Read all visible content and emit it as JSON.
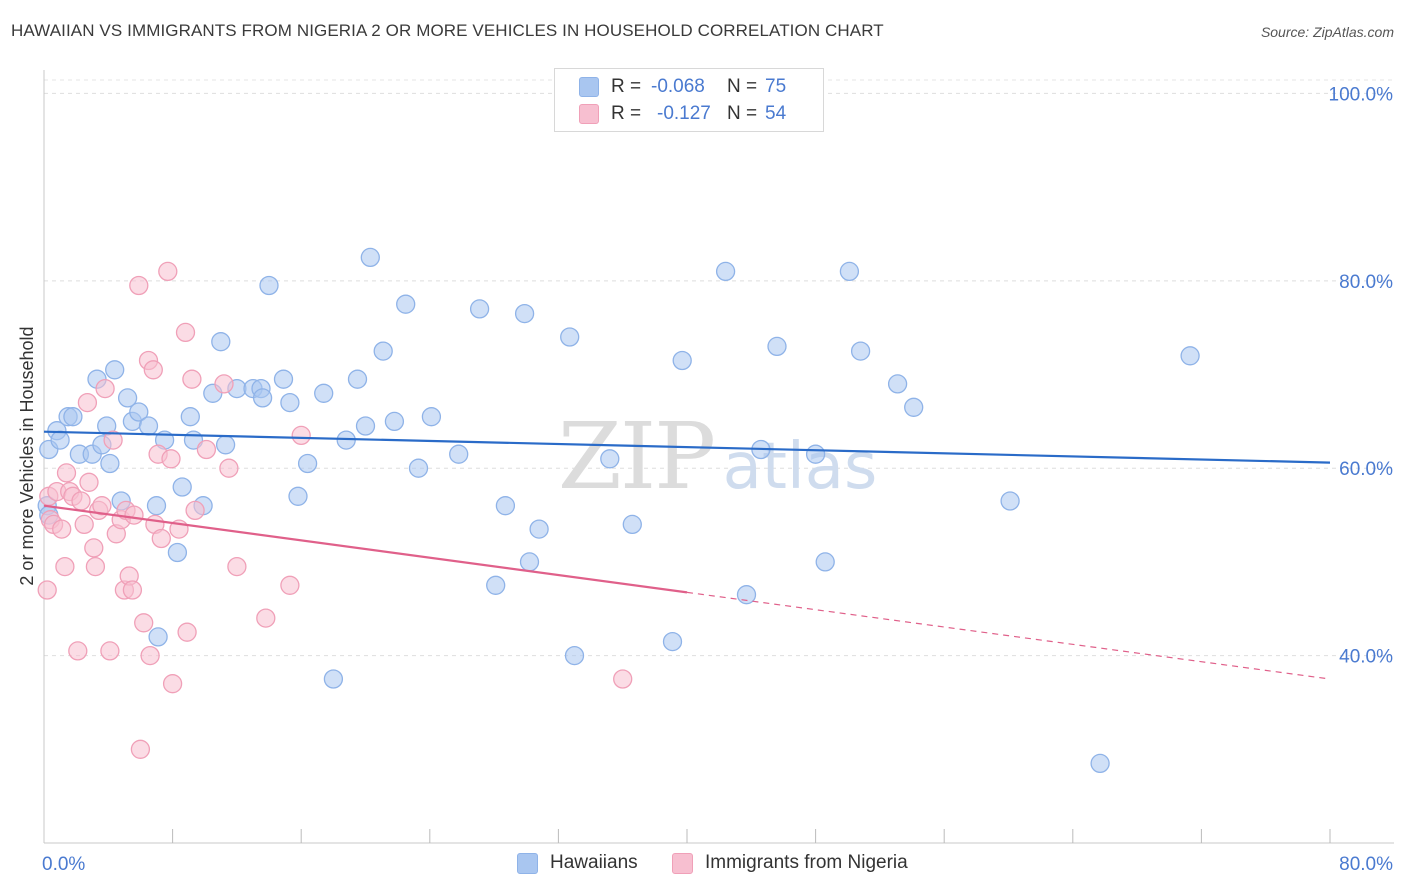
{
  "title": "HAWAIIAN VS IMMIGRANTS FROM NIGERIA 2 OR MORE VEHICLES IN HOUSEHOLD CORRELATION CHART",
  "source": "Source: ZipAtlas.com",
  "watermark": {
    "zip": "ZIP",
    "atlas": "atlas"
  },
  "legend": {
    "rows": [
      {
        "r_label": "R =",
        "r_value": "-0.068",
        "n_label": "N =",
        "n_value": "75"
      },
      {
        "r_label": "R =",
        "r_value": "-0.127",
        "n_label": "N =",
        "n_value": "54"
      }
    ]
  },
  "chart_data": {
    "type": "scatter",
    "title": "HAWAIIAN VS IMMIGRANTS FROM NIGERIA 2 OR MORE VEHICLES IN HOUSEHOLD CORRELATION CHART",
    "xlabel": "",
    "ylabel": "2 or more Vehicles in Household",
    "xlim": [
      0,
      80
    ],
    "ylim": [
      20,
      102.5
    ],
    "x_tick_labels": [
      {
        "value": 0,
        "label": "0.0%"
      },
      {
        "value": 80,
        "label": "80.0%"
      }
    ],
    "y_tick_labels": [
      {
        "value": 100,
        "label": "100.0%"
      },
      {
        "value": 80,
        "label": "80.0%"
      },
      {
        "value": 60,
        "label": "60.0%"
      },
      {
        "value": 40,
        "label": "40.0%"
      }
    ],
    "x_minor_ticks": [
      8,
      16,
      24,
      32,
      40,
      48,
      56,
      64,
      72,
      80
    ],
    "grid": true,
    "series": [
      {
        "name": "Hawaiians",
        "color": "#8fb3e8",
        "fill": "#a9c6f0",
        "line_color": "#2a6bc8",
        "trend": {
          "x": [
            0,
            80
          ],
          "y": [
            63.9,
            60.6
          ],
          "dash_from": null
        },
        "points": [
          [
            0.2,
            56.0
          ],
          [
            0.3,
            55.0
          ],
          [
            0.3,
            62.0
          ],
          [
            0.8,
            64.0
          ],
          [
            1.0,
            63.0
          ],
          [
            1.5,
            65.5
          ],
          [
            1.8,
            65.5
          ],
          [
            2.2,
            61.5
          ],
          [
            3.0,
            61.5
          ],
          [
            3.3,
            69.5
          ],
          [
            3.6,
            62.5
          ],
          [
            3.9,
            64.5
          ],
          [
            4.1,
            60.5
          ],
          [
            4.4,
            70.5
          ],
          [
            4.8,
            56.5
          ],
          [
            5.2,
            67.5
          ],
          [
            5.5,
            65.0
          ],
          [
            5.9,
            66.0
          ],
          [
            6.5,
            64.5
          ],
          [
            7.1,
            42.0
          ],
          [
            7.0,
            56.0
          ],
          [
            7.5,
            63.0
          ],
          [
            8.3,
            51.0
          ],
          [
            8.6,
            58.0
          ],
          [
            9.1,
            65.5
          ],
          [
            9.3,
            63.0
          ],
          [
            9.9,
            56.0
          ],
          [
            10.5,
            68.0
          ],
          [
            11.0,
            73.5
          ],
          [
            11.3,
            62.5
          ],
          [
            12.0,
            68.5
          ],
          [
            13.0,
            68.5
          ],
          [
            13.5,
            68.5
          ],
          [
            13.6,
            67.5
          ],
          [
            14.0,
            79.5
          ],
          [
            14.9,
            69.5
          ],
          [
            15.3,
            67.0
          ],
          [
            15.8,
            57.0
          ],
          [
            16.4,
            60.5
          ],
          [
            17.4,
            68.0
          ],
          [
            18.0,
            37.5
          ],
          [
            18.8,
            63.0
          ],
          [
            19.5,
            69.5
          ],
          [
            20.0,
            64.5
          ],
          [
            20.3,
            82.5
          ],
          [
            21.1,
            72.5
          ],
          [
            21.8,
            65.0
          ],
          [
            22.5,
            77.5
          ],
          [
            23.3,
            60.0
          ],
          [
            24.1,
            65.5
          ],
          [
            25.8,
            61.5
          ],
          [
            27.1,
            77.0
          ],
          [
            28.1,
            47.5
          ],
          [
            28.7,
            56.0
          ],
          [
            29.9,
            76.5
          ],
          [
            30.2,
            50.0
          ],
          [
            30.8,
            53.5
          ],
          [
            32.7,
            74.0
          ],
          [
            33.0,
            40.0
          ],
          [
            35.2,
            61.0
          ],
          [
            36.6,
            54.0
          ],
          [
            39.1,
            41.5
          ],
          [
            39.7,
            71.5
          ],
          [
            42.4,
            81.0
          ],
          [
            43.7,
            46.5
          ],
          [
            44.6,
            62.0
          ],
          [
            45.6,
            73.0
          ],
          [
            48.0,
            61.5
          ],
          [
            48.6,
            50.0
          ],
          [
            50.1,
            81.0
          ],
          [
            50.8,
            72.5
          ],
          [
            53.1,
            69.0
          ],
          [
            54.1,
            66.5
          ],
          [
            60.1,
            56.5
          ],
          [
            65.7,
            28.5
          ],
          [
            71.3,
            72.0
          ]
        ]
      },
      {
        "name": "Immigrants from Nigeria",
        "color": "#f0a0b8",
        "fill": "#f7bfd0",
        "line_color": "#e0608a",
        "trend": {
          "x": [
            0,
            80
          ],
          "y": [
            56.0,
            37.5
          ],
          "dash_from": 40
        },
        "points": [
          [
            0.2,
            47.0
          ],
          [
            0.3,
            57.0
          ],
          [
            0.4,
            54.5
          ],
          [
            0.6,
            54.0
          ],
          [
            0.8,
            57.5
          ],
          [
            1.1,
            53.5
          ],
          [
            1.3,
            49.5
          ],
          [
            1.4,
            59.5
          ],
          [
            1.6,
            57.5
          ],
          [
            1.8,
            57.0
          ],
          [
            2.1,
            40.5
          ],
          [
            2.3,
            56.5
          ],
          [
            2.5,
            54.0
          ],
          [
            2.7,
            67.0
          ],
          [
            2.8,
            58.5
          ],
          [
            3.1,
            51.5
          ],
          [
            3.2,
            49.5
          ],
          [
            3.4,
            55.5
          ],
          [
            3.6,
            56.0
          ],
          [
            3.8,
            68.5
          ],
          [
            4.1,
            40.5
          ],
          [
            4.3,
            63.0
          ],
          [
            4.5,
            53.0
          ],
          [
            4.8,
            54.5
          ],
          [
            5.0,
            47.0
          ],
          [
            5.1,
            55.5
          ],
          [
            5.3,
            48.5
          ],
          [
            5.5,
            47.0
          ],
          [
            5.6,
            55.0
          ],
          [
            5.9,
            79.5
          ],
          [
            6.0,
            30.0
          ],
          [
            6.2,
            43.5
          ],
          [
            6.5,
            71.5
          ],
          [
            6.6,
            40.0
          ],
          [
            6.8,
            70.5
          ],
          [
            6.9,
            54.0
          ],
          [
            7.1,
            61.5
          ],
          [
            7.3,
            52.5
          ],
          [
            7.7,
            81.0
          ],
          [
            7.9,
            61.0
          ],
          [
            8.0,
            37.0
          ],
          [
            8.4,
            53.5
          ],
          [
            8.8,
            74.5
          ],
          [
            8.9,
            42.5
          ],
          [
            9.2,
            69.5
          ],
          [
            9.4,
            55.5
          ],
          [
            10.1,
            62.0
          ],
          [
            11.2,
            69.0
          ],
          [
            11.5,
            60.0
          ],
          [
            12.0,
            49.5
          ],
          [
            13.8,
            44.0
          ],
          [
            15.3,
            47.5
          ],
          [
            16.0,
            63.5
          ],
          [
            36.0,
            37.5
          ]
        ]
      }
    ]
  }
}
